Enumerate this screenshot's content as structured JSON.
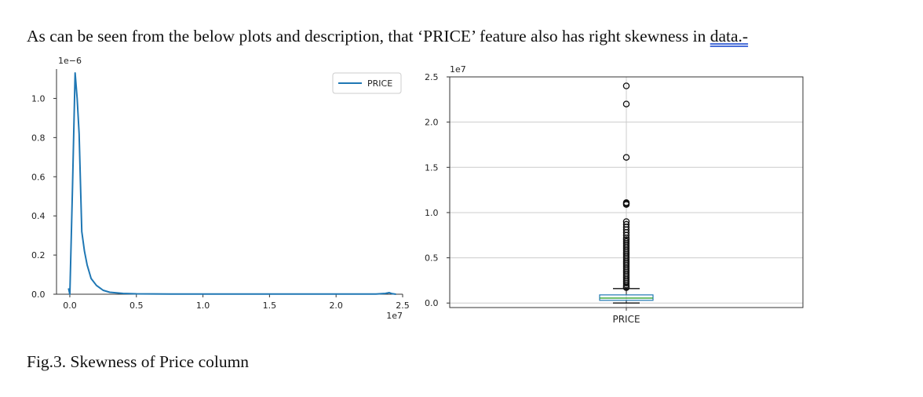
{
  "document": {
    "paragraph_main": "As can be seen from the below plots and description, that ‘PRICE’ feature also has right skewness in ",
    "paragraph_link": "data.-",
    "caption": "Fig.3. Skewness of Price column"
  },
  "chart_data": [
    {
      "type": "line",
      "title": "",
      "xlabel": "",
      "ylabel": "",
      "x_offset_label": "1e7",
      "y_offset_label": "1e−6",
      "xlim": [
        -0.1,
        2.5
      ],
      "ylim": [
        0,
        1.15
      ],
      "x_ticks": [
        0.0,
        0.5,
        1.0,
        1.5,
        2.0,
        2.5
      ],
      "x_tick_labels": [
        "0.0",
        "0.5",
        "1.0",
        "1.5",
        "2.0",
        "2.5"
      ],
      "y_ticks": [
        0.0,
        0.2,
        0.4,
        0.6,
        0.8,
        1.0
      ],
      "y_tick_labels": [
        "0.0",
        "0.2",
        "0.4",
        "0.6",
        "0.8",
        "1.0"
      ],
      "grid": false,
      "legend": "top-right",
      "color": "#1f77b4",
      "series": [
        {
          "name": "PRICE",
          "x": [
            -0.01,
            0.0,
            0.02,
            0.04,
            0.055,
            0.07,
            0.09,
            0.11,
            0.13,
            0.16,
            0.2,
            0.25,
            0.3,
            0.4,
            0.5,
            0.75,
            1.0,
            1.5,
            2.0,
            2.3,
            2.37,
            2.4,
            2.42,
            2.45
          ],
          "y": [
            0.03,
            0.0,
            0.55,
            1.13,
            1.0,
            0.82,
            0.32,
            0.22,
            0.15,
            0.08,
            0.045,
            0.02,
            0.01,
            0.004,
            0.002,
            0.001,
            0.001,
            0.001,
            0.001,
            0.001,
            0.004,
            0.008,
            0.003,
            0.0
          ]
        }
      ]
    },
    {
      "type": "box",
      "title": "",
      "xlabel": "",
      "ylabel": "",
      "y_offset_label": "1e7",
      "ylim": [
        -0.05,
        2.5
      ],
      "y_ticks": [
        0.0,
        0.5,
        1.0,
        1.5,
        2.0,
        2.5
      ],
      "y_tick_labels": [
        "0.0",
        "0.5",
        "1.0",
        "1.5",
        "2.0",
        "2.5"
      ],
      "grid": true,
      "categories": [
        "PRICE"
      ],
      "box_color": "#1f77b4",
      "median_color": "#2ca02c",
      "box": {
        "min": 0.0,
        "q1": 0.03,
        "median": 0.055,
        "q3": 0.09,
        "max": 0.16
      },
      "outliers": [
        2.4,
        2.2,
        1.61,
        1.11,
        1.1,
        1.09,
        0.9,
        0.87,
        0.84,
        0.81,
        0.78,
        0.75,
        0.72,
        0.7,
        0.68,
        0.66,
        0.64,
        0.62,
        0.6,
        0.58,
        0.56,
        0.54,
        0.52,
        0.5,
        0.48,
        0.46,
        0.44,
        0.42,
        0.4,
        0.38,
        0.36,
        0.34,
        0.32,
        0.3,
        0.28,
        0.26,
        0.24,
        0.22,
        0.2,
        0.18,
        0.17
      ]
    }
  ]
}
